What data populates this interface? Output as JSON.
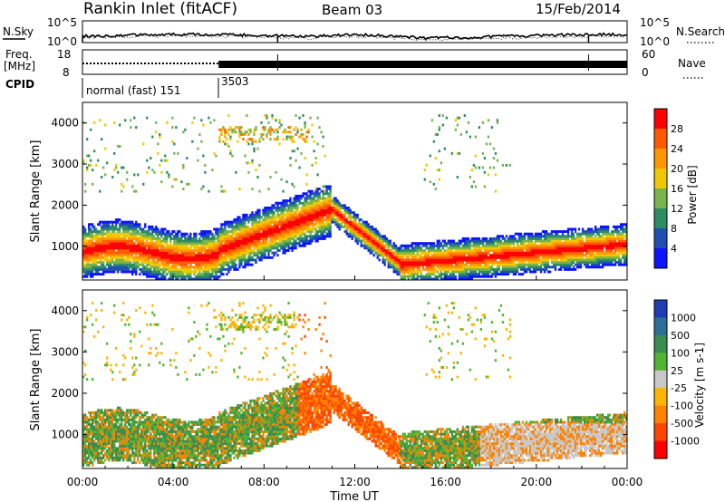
{
  "header": {
    "station": "Rankin Inlet (fitACF)",
    "beam": "Beam 03",
    "date": "15/Feb/2014"
  },
  "chart_data": [
    {
      "type": "line",
      "panel": "noise",
      "left_label": "N.Sky",
      "right_label": "N.Search",
      "yticks_left": [
        "10^5",
        "10^0"
      ],
      "yticks_right": [
        "10^5",
        "10^0"
      ],
      "xlim": [
        "00:00",
        "24:00"
      ]
    },
    {
      "type": "line",
      "panel": "frequency",
      "left_label": "Freq.",
      "left_unit": "[MHz]",
      "yticks_left": [
        "18",
        "8"
      ],
      "right_label": "Nave",
      "yticks_right": [
        "60",
        "0"
      ],
      "xlim": [
        "00:00",
        "24:00"
      ]
    },
    {
      "type": "table",
      "panel": "cpid",
      "label": "CPID",
      "segments": [
        {
          "start_hour": 0,
          "name": "normal (fast) 151"
        },
        {
          "start_hour": 6,
          "name": "3503"
        }
      ]
    },
    {
      "type": "heatmap",
      "panel": "power",
      "ylabel": "Slant Range [km]",
      "yticks": [
        1000,
        2000,
        3000,
        4000
      ],
      "ylim": [
        180,
        4500
      ],
      "xlim_hours": [
        0,
        24
      ],
      "colorbar": {
        "label": "Power [dB]",
        "ticks": [
          "28",
          "24",
          "20",
          "16",
          "12",
          "8",
          "4"
        ],
        "colors": [
          "#ff0000",
          "#ff5a00",
          "#ff9600",
          "#f0c800",
          "#78b44b",
          "#2d8c64",
          "#1e50b4",
          "#0a14ff"
        ]
      }
    },
    {
      "type": "heatmap",
      "panel": "velocity",
      "ylabel": "Slant Range [km]",
      "yticks": [
        1000,
        2000,
        3000,
        4000
      ],
      "ylim": [
        180,
        4500
      ],
      "xlim_hours": [
        0,
        24
      ],
      "xlabel": "Time UT",
      "xticks": [
        "00:00",
        "04:00",
        "08:00",
        "12:00",
        "16:00",
        "20:00",
        "00:00"
      ],
      "colorbar": {
        "label": "Velocity [m s-1]",
        "ticks": [
          "1000",
          "500",
          "100",
          "25",
          "-25",
          "-100",
          "-500",
          "-1000"
        ],
        "colors": [
          "#1e3cb4",
          "#2d6e96",
          "#3c8c50",
          "#50b432",
          "#c8c8c8",
          "#ffb400",
          "#ff8200",
          "#ff4600",
          "#ff0000"
        ]
      }
    }
  ]
}
